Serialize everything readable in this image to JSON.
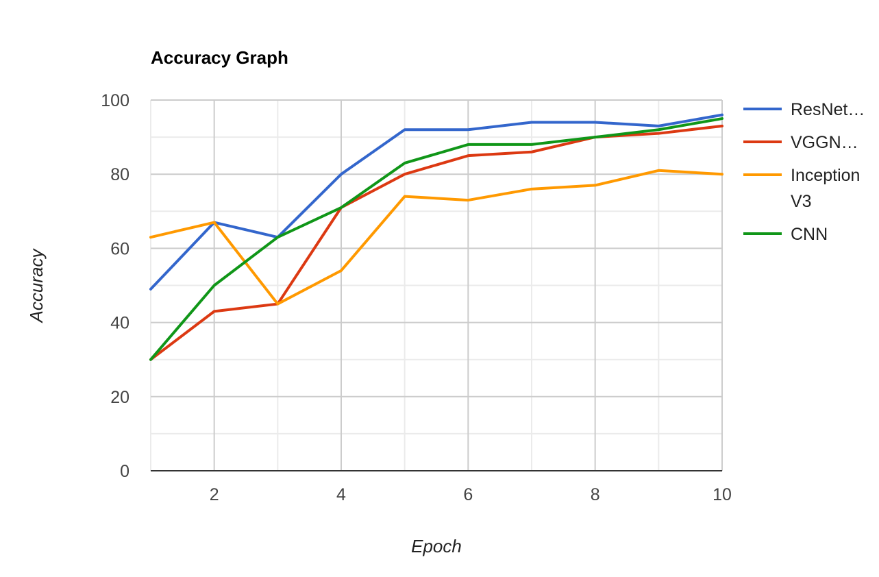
{
  "chart_data": {
    "type": "line",
    "title": "Accuracy Graph",
    "xlabel": "Epoch",
    "ylabel": "Accuracy",
    "x": [
      1,
      2,
      3,
      4,
      5,
      6,
      7,
      8,
      9,
      10
    ],
    "xlim": [
      1,
      10
    ],
    "ylim": [
      0,
      100
    ],
    "xticks": [
      2,
      4,
      6,
      8,
      10
    ],
    "yticks": [
      0,
      20,
      40,
      60,
      80,
      100
    ],
    "grid": true,
    "legend_position": "right",
    "series": [
      {
        "name": "ResNet…",
        "color": "#3366cc",
        "values": [
          49,
          67,
          63,
          80,
          92,
          92,
          94,
          94,
          93,
          96
        ]
      },
      {
        "name": "VGGN…",
        "color": "#dc3912",
        "values": [
          30,
          43,
          45,
          71,
          80,
          85,
          86,
          90,
          91,
          93
        ]
      },
      {
        "name": "Inception V3",
        "color": "#ff9900",
        "values": [
          63,
          67,
          45,
          54,
          74,
          73,
          76,
          77,
          81,
          80
        ]
      },
      {
        "name": "CNN",
        "color": "#109618",
        "values": [
          30,
          50,
          63,
          71,
          83,
          88,
          88,
          90,
          92,
          95
        ]
      }
    ]
  }
}
